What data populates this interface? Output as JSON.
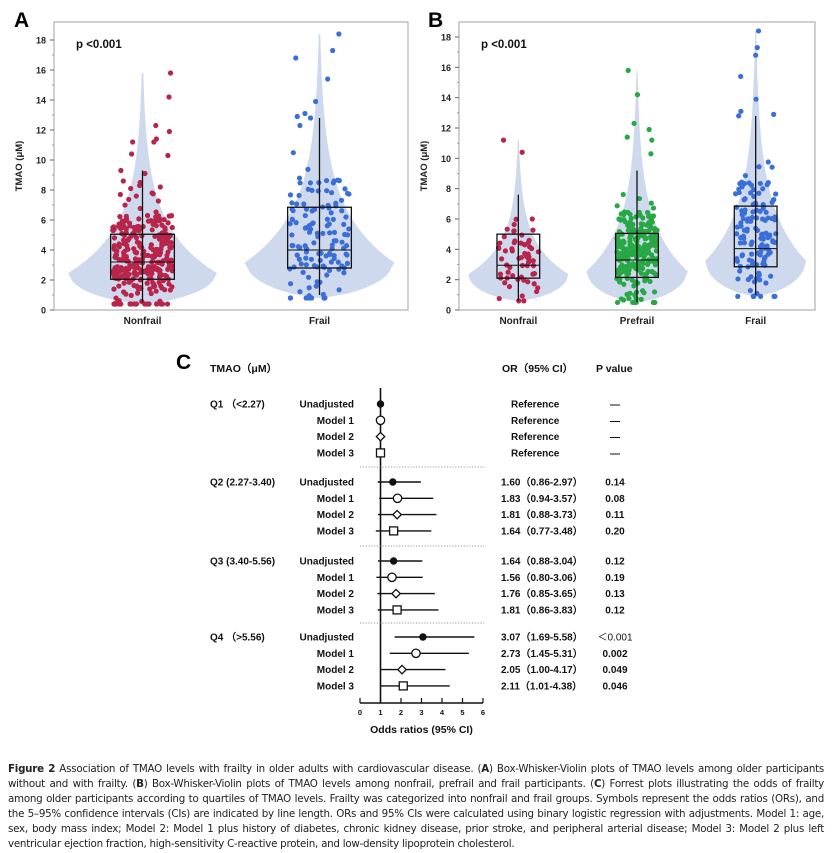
{
  "chart_data": [
    {
      "panel": "A",
      "type": "violin-box-scatter",
      "title": "",
      "annotation": "p <0.001",
      "xlabel": "",
      "ylabel": "TMAO (μM)",
      "ylim": [
        0,
        19
      ],
      "yticks": [
        0,
        2,
        4,
        6,
        8,
        10,
        12,
        14,
        16,
        18
      ],
      "grid": false,
      "categories": [
        "Nonfrail",
        "Frail"
      ],
      "series": [
        {
          "name": "Nonfrail",
          "color": "#b8244a",
          "n_points_approx": 300,
          "q1": 2.05,
          "median": 3.2,
          "q3": 5.05,
          "whisker_low": 0.5,
          "whisker_high": 9.3,
          "min": 0.4,
          "max": 15.8,
          "outliers": [
            15.8,
            14.2,
            12.3,
            11.9,
            11.4,
            11.2,
            11.2,
            10.4,
            10.3,
            9.3,
            9.1,
            8.6,
            8.5,
            8.3,
            8.1,
            7.8,
            7.7
          ]
        },
        {
          "name": "Frail",
          "color": "#3a6fd8",
          "n_points_approx": 130,
          "q1": 2.8,
          "median": 4.0,
          "q3": 6.85,
          "whisker_low": 1.0,
          "whisker_high": 12.8,
          "min": 0.8,
          "max": 18.4,
          "outliers": [
            18.4,
            17.3,
            16.8,
            15.4,
            13.9,
            13.1,
            12.9,
            12.8,
            12.3
          ]
        }
      ],
      "violin_color": "#cfd9ee"
    },
    {
      "panel": "B",
      "type": "violin-box-scatter",
      "title": "",
      "annotation": "p <0.001",
      "xlabel": "",
      "ylabel": "TMAO (μM)",
      "ylim": [
        0,
        19
      ],
      "yticks": [
        0,
        2,
        4,
        6,
        8,
        10,
        12,
        14,
        16,
        18
      ],
      "grid": false,
      "categories": [
        "Nonfrail",
        "Prefrail",
        "Frail"
      ],
      "series": [
        {
          "name": "Nonfrail",
          "color": "#b8244a",
          "n_points_approx": 60,
          "q1": 2.1,
          "median": 2.95,
          "q3": 5.0,
          "whisker_low": 0.6,
          "whisker_high": 7.6,
          "min": 0.6,
          "max": 11.2,
          "outliers": [
            11.2,
            10.4
          ]
        },
        {
          "name": "Prefrail",
          "color": "#27a845",
          "n_points_approx": 250,
          "q1": 2.15,
          "median": 3.3,
          "q3": 5.05,
          "whisker_low": 0.5,
          "whisker_high": 9.2,
          "min": 0.5,
          "max": 15.8,
          "outliers": [
            15.8,
            14.2,
            12.3,
            11.9,
            11.4,
            11.2,
            10.3
          ]
        },
        {
          "name": "Frail",
          "color": "#3a6fd8",
          "n_points_approx": 130,
          "q1": 2.85,
          "median": 4.05,
          "q3": 6.85,
          "whisker_low": 1.0,
          "whisker_high": 12.8,
          "min": 0.9,
          "max": 18.4,
          "outliers": [
            18.4,
            17.3,
            16.8,
            15.4,
            13.9,
            13.1,
            12.9
          ]
        }
      ],
      "violin_color": "#cfd9ee"
    },
    {
      "panel": "C",
      "type": "forest",
      "title": "TMAO（μM）",
      "xlabel": "Odds ratios (95% CI)",
      "xlim": [
        0,
        6
      ],
      "xticks": [
        0,
        1,
        2,
        3,
        4,
        5,
        6
      ],
      "reference_line": 1,
      "col_headers": {
        "or": "OR（95% CI）",
        "p": "P value"
      },
      "groups": [
        {
          "label": "Q1 （<2.27)",
          "rows": [
            {
              "model": "Unadjusted",
              "symbol": "filled-circle",
              "or": 1,
              "lo": null,
              "hi": null,
              "or_text": "Reference",
              "p_text": "—"
            },
            {
              "model": "Model 1",
              "symbol": "open-circle",
              "or": 1,
              "lo": null,
              "hi": null,
              "or_text": "Reference",
              "p_text": "—"
            },
            {
              "model": "Model 2",
              "symbol": "open-diamond",
              "or": 1,
              "lo": null,
              "hi": null,
              "or_text": "Reference",
              "p_text": "—"
            },
            {
              "model": "Model 3",
              "symbol": "open-square",
              "or": 1,
              "lo": null,
              "hi": null,
              "or_text": "Reference",
              "p_text": "—"
            }
          ]
        },
        {
          "label": "Q2 (2.27-3.40)",
          "rows": [
            {
              "model": "Unadjusted",
              "symbol": "filled-circle",
              "or": 1.6,
              "lo": 0.86,
              "hi": 2.97,
              "or_text": "1.60（0.86-2.97）",
              "p_text": "0.14"
            },
            {
              "model": "Model 1",
              "symbol": "open-circle",
              "or": 1.83,
              "lo": 0.94,
              "hi": 3.57,
              "or_text": "1.83（0.94-3.57）",
              "p_text": "0.08"
            },
            {
              "model": "Model 2",
              "symbol": "open-diamond",
              "or": 1.81,
              "lo": 0.88,
              "hi": 3.73,
              "or_text": "1.81（0.88-3.73）",
              "p_text": "0.11"
            },
            {
              "model": "Model 3",
              "symbol": "open-square",
              "or": 1.64,
              "lo": 0.77,
              "hi": 3.48,
              "or_text": "1.64（0.77-3.48）",
              "p_text": "0.20"
            }
          ]
        },
        {
          "label": "Q3 (3.40-5.56)",
          "rows": [
            {
              "model": "Unadjusted",
              "symbol": "filled-circle",
              "or": 1.64,
              "lo": 0.88,
              "hi": 3.04,
              "or_text": "1.64（0.88-3.04）",
              "p_text": "0.12"
            },
            {
              "model": "Model 1",
              "symbol": "open-circle",
              "or": 1.56,
              "lo": 0.8,
              "hi": 3.06,
              "or_text": "1.56（0.80-3.06）",
              "p_text": "0.19"
            },
            {
              "model": "Model 2",
              "symbol": "open-diamond",
              "or": 1.76,
              "lo": 0.85,
              "hi": 3.65,
              "or_text": "1.76（0.85-3.65）",
              "p_text": "0.13"
            },
            {
              "model": "Model 3",
              "symbol": "open-square",
              "or": 1.81,
              "lo": 0.86,
              "hi": 3.83,
              "or_text": "1.81（0.86-3.83）",
              "p_text": "0.12"
            }
          ]
        },
        {
          "label": "Q4 （>5.56)",
          "rows": [
            {
              "model": "Unadjusted",
              "symbol": "filled-circle",
              "or": 3.07,
              "lo": 1.69,
              "hi": 5.58,
              "or_text": "3.07（1.69-5.58）",
              "p_text": "＜0.001"
            },
            {
              "model": "Model 1",
              "symbol": "open-circle",
              "or": 2.73,
              "lo": 1.45,
              "hi": 5.31,
              "or_text": "2.73（1.45-5.31）",
              "p_text": "0.002"
            },
            {
              "model": "Model 2",
              "symbol": "open-diamond",
              "or": 2.05,
              "lo": 1.0,
              "hi": 4.17,
              "or_text": "2.05（1.00-4.17）",
              "p_text": "0.049"
            },
            {
              "model": "Model 3",
              "symbol": "open-square",
              "or": 2.11,
              "lo": 1.01,
              "hi": 4.38,
              "or_text": "2.11（1.01-4.38）",
              "p_text": "0.046"
            }
          ]
        }
      ]
    }
  ],
  "panel_labels": {
    "a": "A",
    "b": "B",
    "c": "C"
  },
  "caption": {
    "figure_label": "Figure 2",
    "parts": [
      {
        "t": " Association of TMAO levels with frailty in older adults with cardiovascular disease. ("
      },
      {
        "b": "A"
      },
      {
        "t": ") Box-Whisker-Violin plots of TMAO levels among older participants without and with frailty. ("
      },
      {
        "b": "B"
      },
      {
        "t": ") Box-Whisker-Violin plots of TMAO levels among nonfrail, prefrail and frail participants. ("
      },
      {
        "b": "C"
      },
      {
        "t": ") Forrest plots illustrating the odds of frailty among older participants according to quartiles of TMAO levels. Frailty was categorized into nonfrail and frail groups. Symbols represent the odds ratios (ORs), and the 5–95% confidence intervals (CIs) are indicated by line length. ORs and 95% CIs were calculated using binary logistic regression with adjustments. Model 1: age, sex, body mass index; Model 2: Model 1 plus history of diabetes, chronic kidney disease, prior stroke, and peripheral arterial disease; Model 3: Model 2 plus left ventricular ejection fraction, high-sensitivity C-reactive protein, and low-density lipoprotein cholesterol."
      }
    ]
  }
}
